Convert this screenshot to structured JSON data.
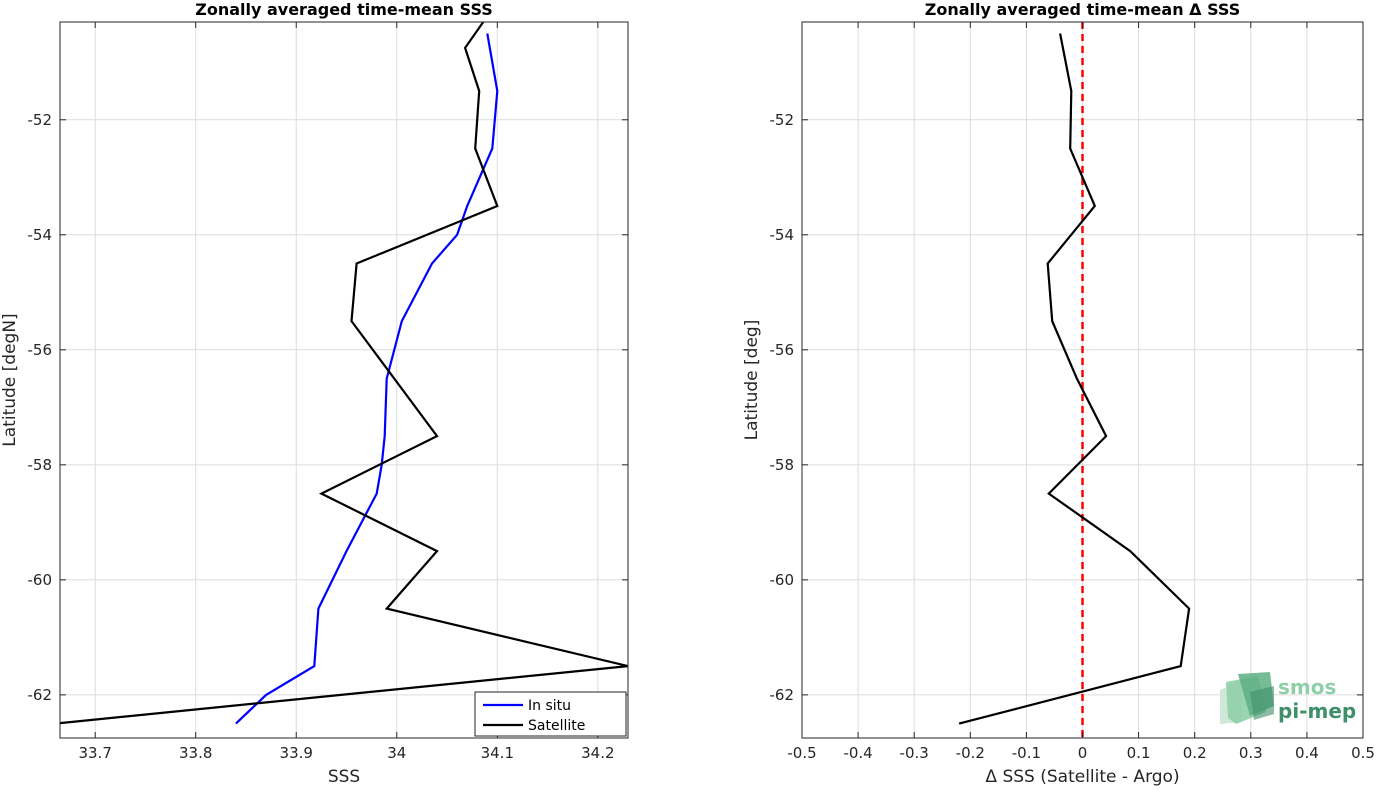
{
  "chart_data": [
    {
      "type": "line",
      "title": "Zonally averaged time-mean SSS",
      "xlabel": "SSS",
      "ylabel": "Latitude [degN]",
      "xlim": [
        33.665,
        34.23
      ],
      "ylim": [
        -62.75,
        -50.3
      ],
      "xticks": [
        33.7,
        33.8,
        33.9,
        34,
        34.1,
        34.2
      ],
      "xtick_labels": [
        "33.7",
        "33.8",
        "33.9",
        "34",
        "34.1",
        "34.2"
      ],
      "yticks": [
        -52,
        -54,
        -56,
        -58,
        -60,
        -62
      ],
      "ytick_labels": [
        "-52",
        "-54",
        "-56",
        "-58",
        "-60",
        "-62"
      ],
      "grid": true,
      "legend_position": "bottom-right",
      "series": [
        {
          "name": "In situ",
          "color": "#0000ff",
          "x": [
            34.09,
            34.1,
            34.095,
            34.07,
            34.06,
            34.035,
            34.005,
            33.99,
            33.988,
            33.985,
            33.98,
            33.95,
            33.922,
            33.918,
            33.87,
            33.84
          ],
          "y": [
            -50.5,
            -51.5,
            -52.5,
            -53.5,
            -54.0,
            -54.5,
            -55.5,
            -56.5,
            -57.5,
            -58.0,
            -58.5,
            -59.5,
            -60.5,
            -61.5,
            -62.0,
            -62.5
          ]
        },
        {
          "name": "Satellite",
          "color": "#000000",
          "x": [
            34.09,
            34.068,
            34.082,
            34.078,
            34.1,
            33.96,
            33.955,
            34.04,
            33.925,
            34.04,
            33.99,
            34.23,
            33.66
          ],
          "y": [
            -50.2,
            -50.75,
            -51.5,
            -52.5,
            -53.5,
            -54.5,
            -55.5,
            -57.5,
            -58.5,
            -59.5,
            -60.5,
            -61.5,
            -62.5
          ]
        }
      ]
    },
    {
      "type": "line",
      "title": "Zonally averaged time-mean Δ SSS",
      "xlabel": "Δ SSS (Satellite - Argo)",
      "ylabel": "Latitude [deg]",
      "xlim": [
        -0.5,
        0.5
      ],
      "ylim": [
        -62.75,
        -50.3
      ],
      "xticks": [
        -0.5,
        -0.4,
        -0.3,
        -0.2,
        -0.1,
        0,
        0.1,
        0.2,
        0.3,
        0.4,
        0.5
      ],
      "xtick_labels": [
        "-0.5",
        "-0.4",
        "-0.3",
        "-0.2",
        "-0.1",
        "0",
        "0.1",
        "0.2",
        "0.3",
        "0.4",
        "0.5"
      ],
      "yticks": [
        -52,
        -54,
        -56,
        -58,
        -60,
        -62
      ],
      "ytick_labels": [
        "-52",
        "-54",
        "-56",
        "-58",
        "-60",
        "-62"
      ],
      "grid": true,
      "reference_line": {
        "x": 0,
        "color": "#ff0000",
        "style": "dashed"
      },
      "series": [
        {
          "color": "#000000",
          "x": [
            -0.04,
            -0.02,
            -0.022,
            0.022,
            -0.062,
            -0.054,
            -0.01,
            0.042,
            -0.06,
            0.085,
            0.19,
            0.175,
            -0.22
          ],
          "y": [
            -50.5,
            -51.5,
            -52.5,
            -53.5,
            -54.5,
            -55.5,
            -56.5,
            -57.5,
            -58.5,
            -59.5,
            -60.5,
            -61.5,
            -62.5
          ]
        }
      ]
    }
  ],
  "logo": {
    "line1": "smos",
    "line2": "pi-mep",
    "colors": [
      "#8fcfa8",
      "#5fae84",
      "#3f8f6a",
      "#cfe8d8"
    ]
  }
}
